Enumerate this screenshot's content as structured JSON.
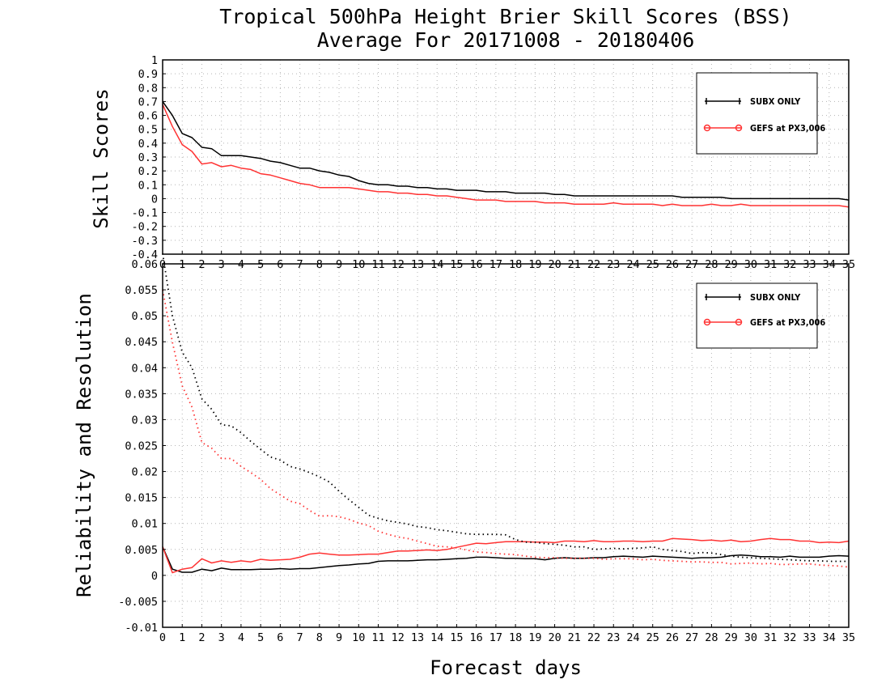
{
  "chart_data": {
    "type": "line",
    "title": "Tropical 500hPa Height Brier Skill Scores (BSS)",
    "subtitle": "Average For 20171008 - 20180406",
    "xlabel": "Forecast days",
    "x_ticks": [
      0,
      1,
      2,
      3,
      4,
      5,
      6,
      7,
      8,
      9,
      10,
      11,
      12,
      13,
      14,
      15,
      16,
      17,
      18,
      19,
      20,
      21,
      22,
      23,
      24,
      25,
      26,
      27,
      28,
      29,
      30,
      31,
      32,
      33,
      34,
      35
    ],
    "panels": [
      {
        "name": "skill",
        "ylabel": "Skill Scores",
        "ylim": [
          -0.4,
          1.0
        ],
        "y_ticks": [
          "1",
          "0.9",
          "0.8",
          "0.7",
          "0.6",
          "0.5",
          "0.4",
          "0.3",
          "0.2",
          "0.1",
          "0",
          "-0.1",
          "-0.2",
          "-0.3",
          "-0.4"
        ],
        "y_tick_values": [
          1,
          0.9,
          0.8,
          0.7,
          0.6,
          0.5,
          0.4,
          0.3,
          0.2,
          0.1,
          0,
          -0.1,
          -0.2,
          -0.3,
          -0.4
        ],
        "grid": true,
        "legend_position": "top-right",
        "legend": [
          "SUBX ONLY",
          "GEFS at PX3,006"
        ],
        "x": [
          0,
          0.5,
          1,
          1.5,
          2,
          2.5,
          3,
          3.5,
          4,
          4.5,
          5,
          5.5,
          6,
          6.5,
          7,
          7.5,
          8,
          8.5,
          9,
          9.5,
          10,
          10.5,
          11,
          11.5,
          12,
          12.5,
          13,
          13.5,
          14,
          14.5,
          15,
          15.5,
          16,
          16.5,
          17,
          17.5,
          18,
          18.5,
          19,
          19.5,
          20,
          20.5,
          21,
          21.5,
          22,
          22.5,
          23,
          23.5,
          24,
          24.5,
          25,
          25.5,
          26,
          26.5,
          27,
          27.5,
          28,
          28.5,
          29,
          29.5,
          30,
          30.5,
          31,
          31.5,
          32,
          32.5,
          33,
          33.5,
          34,
          34.5,
          35
        ],
        "series": [
          {
            "name": "SUBX ONLY",
            "color": "#000000",
            "style": "solid",
            "values": [
              0.7,
              0.6,
              0.47,
              0.44,
              0.37,
              0.36,
              0.31,
              0.31,
              0.31,
              0.3,
              0.29,
              0.27,
              0.26,
              0.24,
              0.22,
              0.22,
              0.2,
              0.19,
              0.17,
              0.16,
              0.13,
              0.11,
              0.1,
              0.1,
              0.09,
              0.09,
              0.08,
              0.08,
              0.07,
              0.07,
              0.06,
              0.06,
              0.06,
              0.05,
              0.05,
              0.05,
              0.04,
              0.04,
              0.04,
              0.04,
              0.03,
              0.03,
              0.02,
              0.02,
              0.02,
              0.02,
              0.02,
              0.02,
              0.02,
              0.02,
              0.02,
              0.02,
              0.02,
              0.01,
              0.01,
              0.01,
              0.01,
              0.01,
              0.0,
              0.0,
              0.0,
              0.0,
              0.0,
              0.0,
              0.0,
              0.0,
              0.0,
              0.0,
              0.0,
              0.0,
              -0.01
            ]
          },
          {
            "name": "GEFS at PX3,006",
            "color": "#ff3333",
            "style": "solid",
            "values": [
              0.68,
              0.52,
              0.39,
              0.34,
              0.25,
              0.26,
              0.23,
              0.24,
              0.22,
              0.21,
              0.18,
              0.17,
              0.15,
              0.13,
              0.11,
              0.1,
              0.08,
              0.08,
              0.08,
              0.08,
              0.07,
              0.06,
              0.05,
              0.05,
              0.04,
              0.04,
              0.03,
              0.03,
              0.02,
              0.02,
              0.01,
              0.0,
              -0.01,
              -0.01,
              -0.01,
              -0.02,
              -0.02,
              -0.02,
              -0.02,
              -0.03,
              -0.03,
              -0.03,
              -0.04,
              -0.04,
              -0.04,
              -0.04,
              -0.03,
              -0.04,
              -0.04,
              -0.04,
              -0.04,
              -0.05,
              -0.04,
              -0.05,
              -0.05,
              -0.05,
              -0.04,
              -0.05,
              -0.05,
              -0.04,
              -0.05,
              -0.05,
              -0.05,
              -0.05,
              -0.05,
              -0.05,
              -0.05,
              -0.05,
              -0.05,
              -0.05,
              -0.06
            ]
          }
        ]
      },
      {
        "name": "reliability-resolution",
        "ylabel": "Reliability and Resolution",
        "ylim": [
          -0.01,
          0.06
        ],
        "y_ticks": [
          "0.06",
          "0.055",
          "0.05",
          "0.045",
          "0.04",
          "0.035",
          "0.03",
          "0.025",
          "0.02",
          "0.015",
          "0.01",
          "0.005",
          "0",
          "-0.005",
          "-0.01"
        ],
        "y_tick_values": [
          0.06,
          0.055,
          0.05,
          0.045,
          0.04,
          0.035,
          0.03,
          0.025,
          0.02,
          0.015,
          0.01,
          0.005,
          0,
          -0.005,
          -0.01
        ],
        "grid": true,
        "legend_position": "top-right",
        "legend": [
          "SUBX ONLY",
          "GEFS at PX3,006"
        ],
        "x": [
          0,
          0.5,
          1,
          1.5,
          2,
          2.5,
          3,
          3.5,
          4,
          4.5,
          5,
          5.5,
          6,
          6.5,
          7,
          7.5,
          8,
          8.5,
          9,
          9.5,
          10,
          10.5,
          11,
          11.5,
          12,
          12.5,
          13,
          13.5,
          14,
          14.5,
          15,
          15.5,
          16,
          16.5,
          17,
          17.5,
          18,
          18.5,
          19,
          19.5,
          20,
          20.5,
          21,
          21.5,
          22,
          22.5,
          23,
          23.5,
          24,
          24.5,
          25,
          25.5,
          26,
          26.5,
          27,
          27.5,
          28,
          28.5,
          29,
          29.5,
          30,
          30.5,
          31,
          31.5,
          32,
          32.5,
          33,
          33.5,
          34,
          34.5,
          35
        ],
        "series": [
          {
            "name": "SUBX ONLY reliability",
            "color": "#000000",
            "style": "solid",
            "values": [
              0.0055,
              0.0012,
              0.0006,
              0.0006,
              0.0012,
              0.0009,
              0.0014,
              0.0011,
              0.0011,
              0.0011,
              0.0012,
              0.0012,
              0.0013,
              0.0012,
              0.0013,
              0.0013,
              0.0015,
              0.0017,
              0.0019,
              0.002,
              0.0022,
              0.0023,
              0.0027,
              0.0028,
              0.0028,
              0.0028,
              0.0029,
              0.003,
              0.003,
              0.0031,
              0.0032,
              0.0033,
              0.0035,
              0.0035,
              0.0034,
              0.0033,
              0.0033,
              0.0032,
              0.0032,
              0.003,
              0.0033,
              0.0034,
              0.0033,
              0.0033,
              0.0034,
              0.0034,
              0.0036,
              0.0037,
              0.0036,
              0.0035,
              0.0037,
              0.0036,
              0.0035,
              0.0034,
              0.0033,
              0.0034,
              0.0034,
              0.0035,
              0.0038,
              0.0039,
              0.0038,
              0.0036,
              0.0036,
              0.0035,
              0.0037,
              0.0035,
              0.0035,
              0.0035,
              0.0037,
              0.0038,
              0.0037
            ]
          },
          {
            "name": "GEFS at PX3,006 reliability",
            "color": "#ff3333",
            "style": "solid",
            "values": [
              0.0055,
              0.0005,
              0.0012,
              0.0015,
              0.0032,
              0.0024,
              0.0028,
              0.0025,
              0.0028,
              0.0026,
              0.0031,
              0.0029,
              0.003,
              0.0031,
              0.0035,
              0.0041,
              0.0043,
              0.0041,
              0.0039,
              0.0039,
              0.004,
              0.0041,
              0.0041,
              0.0044,
              0.0047,
              0.0047,
              0.0048,
              0.0049,
              0.0048,
              0.005,
              0.0054,
              0.0058,
              0.0062,
              0.0061,
              0.0063,
              0.0065,
              0.0065,
              0.0065,
              0.0064,
              0.0064,
              0.0063,
              0.0066,
              0.0066,
              0.0065,
              0.0067,
              0.0065,
              0.0065,
              0.0066,
              0.0066,
              0.0065,
              0.0066,
              0.0066,
              0.0071,
              0.007,
              0.0069,
              0.0067,
              0.0068,
              0.0066,
              0.0068,
              0.0065,
              0.0066,
              0.0069,
              0.0071,
              0.0069,
              0.0069,
              0.0066,
              0.0066,
              0.0063,
              0.0064,
              0.0063,
              0.0066
            ]
          },
          {
            "name": "SUBX ONLY resolution",
            "color": "#000000",
            "style": "dotted",
            "values": [
              0.062,
              0.05,
              0.043,
              0.04,
              0.034,
              0.032,
              0.029,
              0.0288,
              0.0275,
              0.0258,
              0.0243,
              0.0228,
              0.0222,
              0.021,
              0.0205,
              0.0198,
              0.019,
              0.018,
              0.0162,
              0.0146,
              0.0131,
              0.0116,
              0.011,
              0.0105,
              0.0102,
              0.0099,
              0.0094,
              0.0092,
              0.0088,
              0.0086,
              0.0083,
              0.008,
              0.0079,
              0.0079,
              0.0079,
              0.0078,
              0.0069,
              0.0064,
              0.0064,
              0.0061,
              0.006,
              0.0058,
              0.0055,
              0.0055,
              0.005,
              0.0051,
              0.0052,
              0.0051,
              0.0052,
              0.0053,
              0.0055,
              0.005,
              0.0048,
              0.0046,
              0.0042,
              0.0044,
              0.0043,
              0.004,
              0.0037,
              0.0035,
              0.0034,
              0.0033,
              0.0032,
              0.0031,
              0.003,
              0.0029,
              0.0028,
              0.0028,
              0.0027,
              0.0027,
              0.0027
            ]
          },
          {
            "name": "GEFS at PX3,006 resolution",
            "color": "#ff3333",
            "style": "dotted",
            "values": [
              0.055,
              0.0449,
              0.0365,
              0.0324,
              0.0256,
              0.0245,
              0.0225,
              0.0225,
              0.021,
              0.0198,
              0.0185,
              0.0167,
              0.0155,
              0.0143,
              0.0138,
              0.0125,
              0.0114,
              0.0115,
              0.0113,
              0.0108,
              0.0101,
              0.0096,
              0.0085,
              0.0079,
              0.0074,
              0.0071,
              0.0066,
              0.0061,
              0.0056,
              0.0055,
              0.0053,
              0.0049,
              0.0045,
              0.0044,
              0.0042,
              0.0041,
              0.004,
              0.0037,
              0.0035,
              0.0034,
              0.0034,
              0.0033,
              0.0033,
              0.0033,
              0.0033,
              0.0031,
              0.0032,
              0.0032,
              0.0032,
              0.003,
              0.0031,
              0.0029,
              0.0028,
              0.0027,
              0.0026,
              0.0026,
              0.0025,
              0.0025,
              0.0022,
              0.0023,
              0.0024,
              0.0022,
              0.0023,
              0.0021,
              0.0021,
              0.0022,
              0.0022,
              0.002,
              0.0019,
              0.0018,
              0.0016
            ]
          }
        ]
      }
    ]
  }
}
